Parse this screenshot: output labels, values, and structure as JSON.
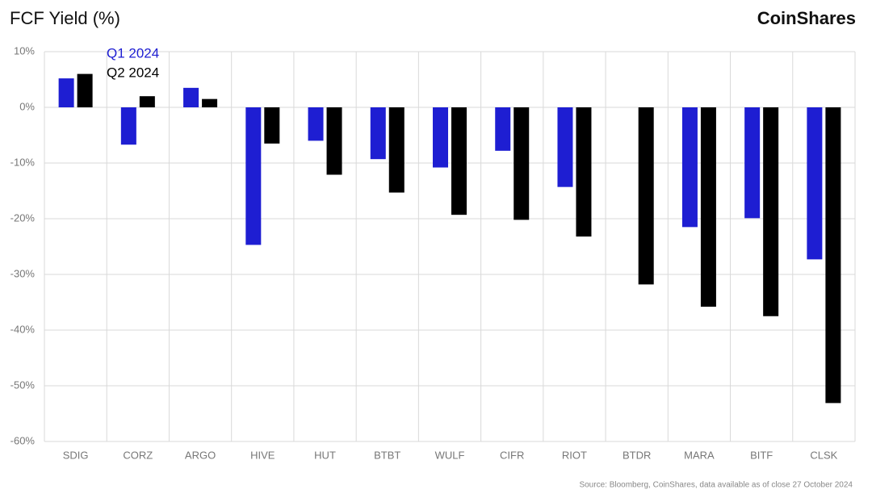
{
  "chart_data": {
    "type": "bar",
    "title": "FCF Yield (%)",
    "brand": "CoinShares",
    "source": "Source: Bloomberg, CoinShares, data available as of close 27 October 2024",
    "categories": [
      "SDIG",
      "CORZ",
      "ARGO",
      "HIVE",
      "HUT",
      "BTBT",
      "WULF",
      "CIFR",
      "RIOT",
      "BTDR",
      "MARA",
      "BITF",
      "CLSK"
    ],
    "series": [
      {
        "name": "Q1 2024",
        "color": "#1e1ed2",
        "values": [
          5.2,
          -6.7,
          3.5,
          -24.7,
          -6,
          -9.3,
          -10.8,
          -7.8,
          -14.3,
          null,
          -21.5,
          -19.9,
          -27.3
        ]
      },
      {
        "name": "Q2 2024",
        "color": "#000000",
        "values": [
          6,
          2,
          1.5,
          -6.5,
          -12.1,
          -15.3,
          -19.3,
          -20.2,
          -23.2,
          -31.8,
          -35.8,
          -37.5,
          -53.1
        ]
      }
    ],
    "ylim": [
      -60,
      10
    ],
    "yticks": [
      {
        "value": 10,
        "label": "10%"
      },
      {
        "value": 0,
        "label": "0%"
      },
      {
        "value": -10,
        "label": "-10%"
      },
      {
        "value": -20,
        "label": "-20%"
      },
      {
        "value": -30,
        "label": "-30%"
      },
      {
        "value": -40,
        "label": "-40%"
      },
      {
        "value": -50,
        "label": "-50%"
      },
      {
        "value": -60,
        "label": "-60%"
      }
    ],
    "grid": true
  }
}
